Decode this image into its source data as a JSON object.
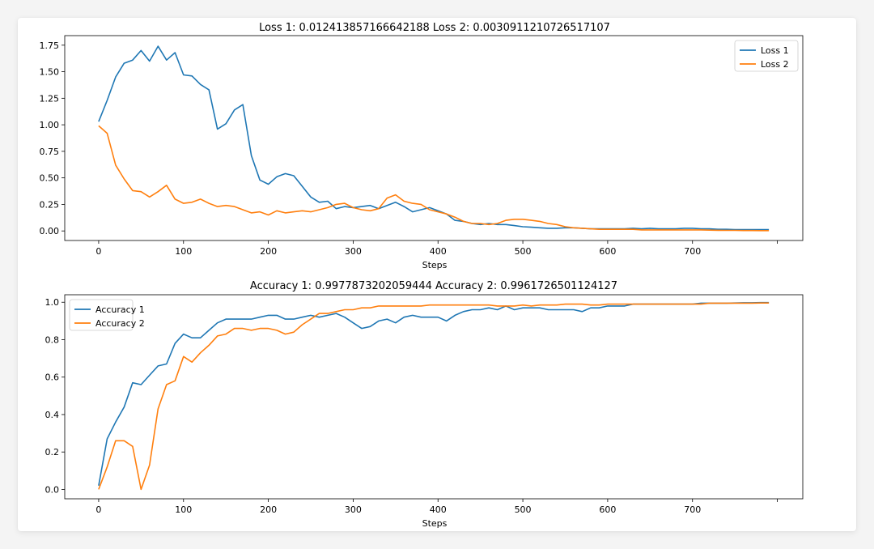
{
  "colors": {
    "series1": "#1f77b4",
    "series2": "#ff7f0e"
  },
  "chart_data": [
    {
      "type": "line",
      "title": "Loss 1: 0.012413857166642188   Loss 2: 0.0030911210726517107",
      "xlabel": "Steps",
      "ylabel": "",
      "xlim": [
        -40,
        830
      ],
      "ylim": [
        -0.09,
        1.84
      ],
      "xticks": [
        0,
        100,
        200,
        300,
        400,
        500,
        600,
        700
      ],
      "xtick_labels": [
        "0",
        "100",
        "200",
        "300",
        "400",
        "500",
        "600",
        "700"
      ],
      "yticks": [
        0,
        0.25,
        0.5,
        0.75,
        1.0,
        1.25,
        1.5,
        1.75
      ],
      "ytick_labels": [
        "0.00",
        "0.25",
        "0.50",
        "0.75",
        "1.00",
        "1.25",
        "1.50",
        "1.75"
      ],
      "legend": "top-right",
      "grid": false,
      "x": [
        0,
        10,
        20,
        30,
        40,
        50,
        60,
        70,
        80,
        90,
        100,
        110,
        120,
        130,
        140,
        150,
        160,
        170,
        180,
        190,
        200,
        210,
        220,
        230,
        240,
        250,
        260,
        270,
        280,
        290,
        300,
        310,
        320,
        330,
        340,
        350,
        360,
        370,
        380,
        390,
        400,
        410,
        420,
        430,
        440,
        450,
        460,
        470,
        480,
        490,
        500,
        510,
        520,
        530,
        540,
        550,
        560,
        570,
        580,
        590,
        600,
        610,
        620,
        630,
        640,
        650,
        660,
        670,
        680,
        690,
        700,
        710,
        720,
        730,
        740,
        750,
        760,
        770,
        780,
        790
      ],
      "series": [
        {
          "name": "Loss 1",
          "values": [
            1.03,
            1.23,
            1.45,
            1.58,
            1.61,
            1.7,
            1.6,
            1.74,
            1.61,
            1.68,
            1.47,
            1.46,
            1.38,
            1.33,
            0.96,
            1.01,
            1.14,
            1.19,
            0.71,
            0.48,
            0.44,
            0.51,
            0.54,
            0.52,
            0.42,
            0.32,
            0.27,
            0.28,
            0.21,
            0.23,
            0.22,
            0.23,
            0.24,
            0.21,
            0.24,
            0.27,
            0.23,
            0.18,
            0.2,
            0.22,
            0.19,
            0.16,
            0.1,
            0.09,
            0.07,
            0.06,
            0.07,
            0.06,
            0.06,
            0.05,
            0.04,
            0.035,
            0.03,
            0.025,
            0.025,
            0.03,
            0.03,
            0.025,
            0.02,
            0.02,
            0.02,
            0.02,
            0.02,
            0.025,
            0.02,
            0.025,
            0.02,
            0.02,
            0.02,
            0.025,
            0.025,
            0.02,
            0.02,
            0.015,
            0.015,
            0.012,
            0.012,
            0.012,
            0.012,
            0.012
          ]
        },
        {
          "name": "Loss 2",
          "values": [
            0.99,
            0.92,
            0.62,
            0.49,
            0.38,
            0.37,
            0.32,
            0.37,
            0.43,
            0.3,
            0.26,
            0.27,
            0.3,
            0.26,
            0.23,
            0.24,
            0.23,
            0.2,
            0.17,
            0.18,
            0.15,
            0.19,
            0.17,
            0.18,
            0.19,
            0.18,
            0.2,
            0.22,
            0.25,
            0.26,
            0.22,
            0.2,
            0.19,
            0.21,
            0.31,
            0.34,
            0.28,
            0.26,
            0.25,
            0.2,
            0.18,
            0.16,
            0.13,
            0.09,
            0.07,
            0.07,
            0.06,
            0.07,
            0.1,
            0.11,
            0.11,
            0.1,
            0.09,
            0.07,
            0.06,
            0.04,
            0.03,
            0.025,
            0.02,
            0.015,
            0.015,
            0.015,
            0.015,
            0.015,
            0.01,
            0.01,
            0.01,
            0.01,
            0.01,
            0.01,
            0.01,
            0.01,
            0.008,
            0.006,
            0.005,
            0.005,
            0.004,
            0.004,
            0.003,
            0.003
          ]
        }
      ]
    },
    {
      "type": "line",
      "title": "Accuracy 1: 0.9977873202059444   Accuracy 2: 0.9961726501124127",
      "xlabel": "Steps",
      "ylabel": "",
      "xlim": [
        -40,
        830
      ],
      "ylim": [
        -0.05,
        1.04
      ],
      "xticks": [
        0,
        100,
        200,
        300,
        400,
        500,
        600,
        700
      ],
      "xtick_labels": [
        "0",
        "100",
        "200",
        "300",
        "400",
        "500",
        "600",
        "700"
      ],
      "yticks": [
        0,
        0.2,
        0.4,
        0.6,
        0.8,
        1.0
      ],
      "ytick_labels": [
        "0.0",
        "0.2",
        "0.4",
        "0.6",
        "0.8",
        "1.0"
      ],
      "legend": "top-left",
      "grid": false,
      "x": [
        0,
        10,
        20,
        30,
        40,
        50,
        60,
        70,
        80,
        90,
        100,
        110,
        120,
        130,
        140,
        150,
        160,
        170,
        180,
        190,
        200,
        210,
        220,
        230,
        240,
        250,
        260,
        270,
        280,
        290,
        300,
        310,
        320,
        330,
        340,
        350,
        360,
        370,
        380,
        390,
        400,
        410,
        420,
        430,
        440,
        450,
        460,
        470,
        480,
        490,
        500,
        510,
        520,
        530,
        540,
        550,
        560,
        570,
        580,
        590,
        600,
        610,
        620,
        630,
        640,
        650,
        660,
        670,
        680,
        690,
        700,
        710,
        720,
        730,
        740,
        750,
        760,
        770,
        780,
        790
      ],
      "series": [
        {
          "name": "Accuracy 1",
          "values": [
            0.02,
            0.27,
            0.36,
            0.44,
            0.57,
            0.56,
            0.61,
            0.66,
            0.67,
            0.78,
            0.83,
            0.81,
            0.81,
            0.85,
            0.89,
            0.91,
            0.91,
            0.91,
            0.91,
            0.92,
            0.93,
            0.93,
            0.91,
            0.91,
            0.92,
            0.93,
            0.92,
            0.93,
            0.94,
            0.92,
            0.89,
            0.86,
            0.87,
            0.9,
            0.91,
            0.89,
            0.92,
            0.93,
            0.92,
            0.92,
            0.92,
            0.9,
            0.93,
            0.95,
            0.96,
            0.96,
            0.97,
            0.96,
            0.98,
            0.96,
            0.97,
            0.97,
            0.97,
            0.96,
            0.96,
            0.96,
            0.96,
            0.95,
            0.97,
            0.97,
            0.98,
            0.98,
            0.98,
            0.99,
            0.99,
            0.99,
            0.99,
            0.99,
            0.99,
            0.99,
            0.99,
            0.995,
            0.995,
            0.995,
            0.995,
            0.996,
            0.997,
            0.997,
            0.998,
            0.998
          ]
        },
        {
          "name": "Accuracy 2",
          "values": [
            0.0,
            0.12,
            0.26,
            0.26,
            0.23,
            0.0,
            0.13,
            0.43,
            0.56,
            0.58,
            0.71,
            0.68,
            0.73,
            0.77,
            0.82,
            0.83,
            0.86,
            0.86,
            0.85,
            0.86,
            0.86,
            0.85,
            0.83,
            0.84,
            0.88,
            0.91,
            0.94,
            0.94,
            0.95,
            0.96,
            0.96,
            0.97,
            0.97,
            0.98,
            0.98,
            0.98,
            0.98,
            0.98,
            0.98,
            0.985,
            0.985,
            0.985,
            0.985,
            0.985,
            0.985,
            0.985,
            0.985,
            0.98,
            0.98,
            0.98,
            0.985,
            0.98,
            0.985,
            0.985,
            0.985,
            0.99,
            0.99,
            0.99,
            0.985,
            0.985,
            0.99,
            0.99,
            0.99,
            0.99,
            0.99,
            0.99,
            0.99,
            0.99,
            0.99,
            0.99,
            0.99,
            0.99,
            0.995,
            0.995,
            0.995,
            0.995,
            0.995,
            0.995,
            0.996,
            0.996
          ]
        }
      ]
    }
  ]
}
